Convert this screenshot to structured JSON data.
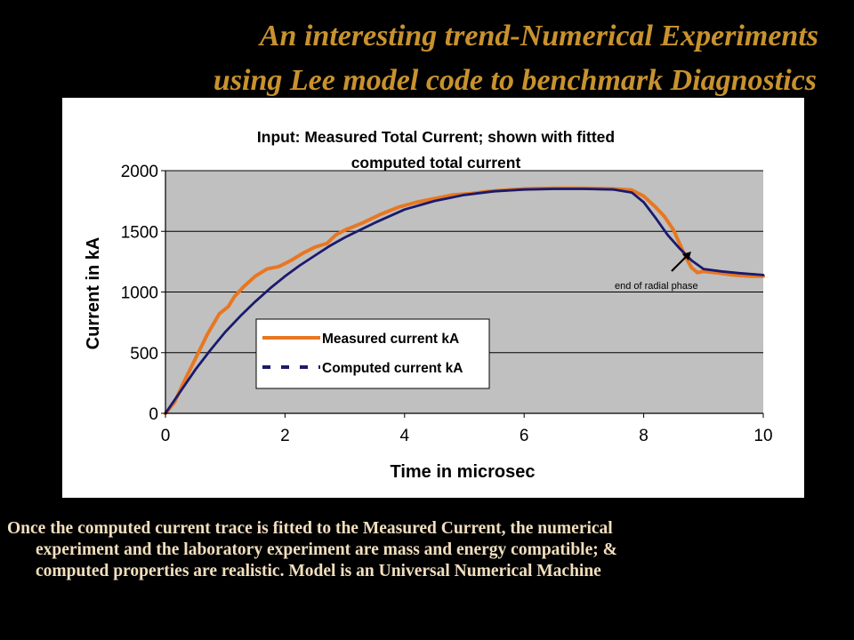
{
  "slide": {
    "title_line1": "An interesting trend-Numerical Experiments",
    "title_line2": "using Lee model code to benchmark Diagnostics",
    "caption_line1": "Once the computed current trace is fitted to the Measured Current, the numerical",
    "caption_line2": "experiment and the laboratory experiment are mass and energy compatible; &",
    "caption_line3": "computed properties are realistic. Model is an Universal Numerical Machine",
    "colors": {
      "background": "#000000",
      "title": "#c8922e",
      "caption": "#f2dfbe"
    }
  },
  "chart_data": {
    "type": "line",
    "title_line1": "Input: Measured Total Current; shown with fitted",
    "title_line2": "computed total current",
    "xlabel": "Time in microsec",
    "ylabel": "Current in kA",
    "xlim": [
      0,
      10
    ],
    "ylim": [
      0,
      2000
    ],
    "x_ticks": [
      0,
      2,
      4,
      6,
      8,
      10
    ],
    "y_ticks": [
      0,
      500,
      1000,
      1500,
      2000
    ],
    "grid": true,
    "plot_background": "#c0c0c0",
    "legend_position": "lower-left inside plot",
    "annotation": {
      "text": "end of radial phase",
      "arrow_to": {
        "x": 8.7,
        "y": 1350
      }
    },
    "series": [
      {
        "name": "Measured current kA",
        "color": "#e87722",
        "style": "solid",
        "points": [
          [
            0,
            0
          ],
          [
            0.15,
            90
          ],
          [
            0.3,
            250
          ],
          [
            0.5,
            450
          ],
          [
            0.7,
            650
          ],
          [
            0.9,
            820
          ],
          [
            1.05,
            880
          ],
          [
            1.15,
            960
          ],
          [
            1.3,
            1040
          ],
          [
            1.5,
            1130
          ],
          [
            1.7,
            1190
          ],
          [
            1.9,
            1210
          ],
          [
            2.1,
            1260
          ],
          [
            2.3,
            1320
          ],
          [
            2.5,
            1370
          ],
          [
            2.7,
            1400
          ],
          [
            2.85,
            1470
          ],
          [
            3.0,
            1510
          ],
          [
            3.3,
            1570
          ],
          [
            3.6,
            1640
          ],
          [
            3.9,
            1700
          ],
          [
            4.2,
            1740
          ],
          [
            4.5,
            1770
          ],
          [
            4.8,
            1800
          ],
          [
            5.1,
            1810
          ],
          [
            5.4,
            1830
          ],
          [
            5.7,
            1840
          ],
          [
            6.0,
            1850
          ],
          [
            6.5,
            1855
          ],
          [
            7.0,
            1855
          ],
          [
            7.5,
            1850
          ],
          [
            7.8,
            1840
          ],
          [
            8.0,
            1790
          ],
          [
            8.2,
            1700
          ],
          [
            8.35,
            1620
          ],
          [
            8.5,
            1510
          ],
          [
            8.6,
            1400
          ],
          [
            8.7,
            1290
          ],
          [
            8.8,
            1200
          ],
          [
            8.9,
            1160
          ],
          [
            9.0,
            1170
          ],
          [
            9.2,
            1160
          ],
          [
            9.5,
            1140
          ],
          [
            9.8,
            1130
          ],
          [
            10.0,
            1130
          ]
        ]
      },
      {
        "name": "Computed current kA",
        "color": "#1a1a6e",
        "style": "dashed",
        "points": [
          [
            0,
            0
          ],
          [
            0.25,
            180
          ],
          [
            0.5,
            360
          ],
          [
            0.75,
            520
          ],
          [
            1.0,
            670
          ],
          [
            1.25,
            800
          ],
          [
            1.5,
            920
          ],
          [
            1.75,
            1030
          ],
          [
            2.0,
            1130
          ],
          [
            2.25,
            1220
          ],
          [
            2.5,
            1300
          ],
          [
            2.75,
            1380
          ],
          [
            3.0,
            1450
          ],
          [
            3.5,
            1570
          ],
          [
            4.0,
            1680
          ],
          [
            4.5,
            1750
          ],
          [
            5.0,
            1800
          ],
          [
            5.5,
            1830
          ],
          [
            6.0,
            1845
          ],
          [
            6.5,
            1850
          ],
          [
            7.0,
            1850
          ],
          [
            7.5,
            1845
          ],
          [
            7.8,
            1820
          ],
          [
            8.0,
            1740
          ],
          [
            8.2,
            1610
          ],
          [
            8.4,
            1470
          ],
          [
            8.6,
            1360
          ],
          [
            8.8,
            1260
          ],
          [
            9.0,
            1190
          ],
          [
            9.3,
            1170
          ],
          [
            9.6,
            1155
          ],
          [
            10.0,
            1140
          ]
        ]
      }
    ]
  }
}
